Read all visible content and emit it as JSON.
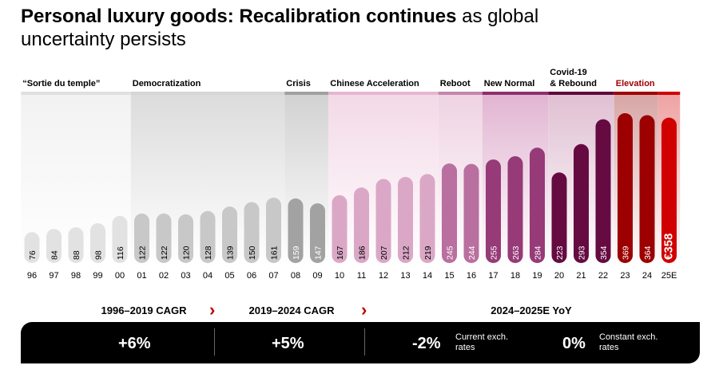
{
  "title": {
    "bold": "Personal luxury goods: Recalibration continues",
    "rest": " as global uncertainty persists"
  },
  "chart_data": {
    "type": "bar",
    "categories": [
      "96",
      "97",
      "98",
      "99",
      "00",
      "01",
      "02",
      "03",
      "04",
      "05",
      "06",
      "07",
      "08",
      "09",
      "10",
      "11",
      "12",
      "13",
      "14",
      "15",
      "16",
      "17",
      "18",
      "19",
      "20",
      "21",
      "22",
      "23",
      "24",
      "25E"
    ],
    "values": [
      76,
      84,
      88,
      98,
      116,
      122,
      122,
      120,
      128,
      139,
      150,
      161,
      159,
      147,
      167,
      186,
      207,
      212,
      219,
      245,
      244,
      255,
      263,
      284,
      223,
      293,
      354,
      369,
      364,
      358
    ],
    "value_labels": [
      "76",
      "84",
      "88",
      "98",
      "116",
      "122",
      "122",
      "120",
      "128",
      "139",
      "150",
      "161",
      "159",
      "147",
      "167",
      "186",
      "207",
      "212",
      "219",
      "245",
      "244",
      "255",
      "263",
      "284",
      "223",
      "293",
      "354",
      "369",
      "364",
      "€358"
    ],
    "eras": [
      {
        "label": "“Sortie du temple”",
        "start": 0,
        "end": 4,
        "bar": "#e2e2e2",
        "band": "#e0e0e0",
        "bg": "#f2f2f2",
        "label_color": "#000000"
      },
      {
        "label": "Democratization",
        "start": 5,
        "end": 11,
        "bar": "#c8c8c8",
        "band": "#d6d6d6",
        "bg": "#dcdcdc",
        "label_color": "#000000"
      },
      {
        "label": "Crisis",
        "start": 12,
        "end": 13,
        "bar": "#a2a2a2",
        "band": "#a0a0a0",
        "bg": "#d2d2d2",
        "label_color": "#000000"
      },
      {
        "label": "Chinese Acceleration",
        "start": 14,
        "end": 18,
        "bar": "#daa8c6",
        "band": "#e6b6d0",
        "bg": "#f3d9e7",
        "label_color": "#000000"
      },
      {
        "label": "Reboot",
        "start": 19,
        "end": 20,
        "bar": "#b96f9f",
        "band": "#c586ad",
        "bg": "#efd3e3",
        "label_color": "#000000"
      },
      {
        "label": "New Normal",
        "start": 21,
        "end": 23,
        "bar": "#963a78",
        "band": "#8f2f6f",
        "bg": "#e2b5d2",
        "label_color": "#000000"
      },
      {
        "label": "Covid-19\n& Rebound",
        "start": 24,
        "end": 26,
        "bar": "#650b41",
        "band": "#5e0a3c",
        "bg": "#e0c0d3",
        "label_color": "#000000"
      },
      {
        "label": "Elevation",
        "start": 27,
        "end": 28,
        "bar": "#9c0000",
        "band": "#a00000",
        "bg": "#d8a6a6",
        "label_color": "#a00000"
      },
      {
        "label": "",
        "start": 29,
        "end": 29,
        "bar": "#d10000",
        "band": "#d10000",
        "bg": "#eea3a3",
        "label_color": "#000000"
      }
    ],
    "ylim": [
      0,
      400
    ],
    "grid": false
  },
  "summary": {
    "headers": [
      "1996–2019 CAGR",
      "2019–2024 CAGR",
      "2024–2025E YoY"
    ],
    "chevron": "›",
    "cagr_1": "+6%",
    "cagr_2": "+5%",
    "yoy_current": "-2%",
    "yoy_current_note": "Current exch. rates",
    "yoy_constant": "0%",
    "yoy_constant_note": "Constant exch. rates"
  }
}
